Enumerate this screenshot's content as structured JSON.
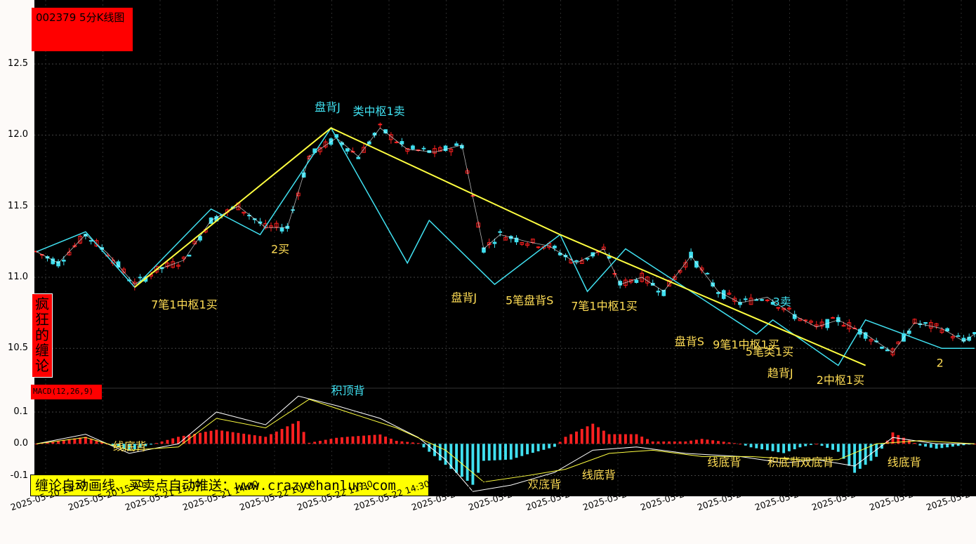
{
  "title": "002379 5分K线图",
  "brand": [
    "疯",
    "狂",
    "的",
    "缠",
    "论"
  ],
  "macd_label": "MACD(12,26,9)",
  "promo": "缠论自动画线、买卖点自动推送：www.crazychanlun.com",
  "colors": {
    "background": "#000000",
    "up": "#ff2020",
    "down": "#40e0f0",
    "yellow": "#ffff40",
    "cyan": "#40e0f0",
    "label": "#ffdd55"
  },
  "chart_data": [
    {
      "type": "candlestick",
      "title": "002379 5分K线图",
      "ylim": [
        10.22,
        12.95
      ],
      "yticks": [
        {
          "v": 12.5,
          "t": "12.5"
        },
        {
          "v": 12.0,
          "t": "12.0"
        },
        {
          "v": 11.5,
          "t": "11.5"
        },
        {
          "v": 11.0,
          "t": "11.0"
        },
        {
          "v": 10.5,
          "t": "10.5"
        }
      ],
      "xticks": [
        "2025-05-20 13:30",
        "2025-05-20 15:00",
        "2025-05-21 11:00",
        "2025-05-21 14:00",
        "2025-05-22 10:00",
        "2025-05-22 11:30",
        "2025-05-22 14:30",
        "2025-05-23 10:30",
        "2025-05-23 13:30",
        "2025-05-23 15:00",
        "2025-05-26 11:00",
        "2025-05-26 14:00",
        "2025-05-27 10:00",
        "2025-05-27 11:30",
        "2025-05-27 14:30",
        "2025-05-28 10:30",
        "2025-05-28"
      ],
      "price_path": [
        [
          0,
          11.18
        ],
        [
          4,
          11.1
        ],
        [
          9,
          11.3
        ],
        [
          13,
          11.17
        ],
        [
          18,
          10.95
        ],
        [
          22,
          11.05
        ],
        [
          27,
          11.12
        ],
        [
          32,
          11.4
        ],
        [
          37,
          11.5
        ],
        [
          42,
          11.35
        ],
        [
          46,
          11.35
        ],
        [
          50,
          11.85
        ],
        [
          55,
          11.98
        ],
        [
          59,
          11.85
        ],
        [
          63,
          12.05
        ],
        [
          68,
          11.9
        ],
        [
          73,
          11.88
        ],
        [
          78,
          11.93
        ],
        [
          82,
          11.2
        ],
        [
          85,
          11.3
        ],
        [
          90,
          11.25
        ],
        [
          94,
          11.22
        ],
        [
          99,
          11.1
        ],
        [
          104,
          11.2
        ],
        [
          107,
          10.95
        ],
        [
          111,
          11.0
        ],
        [
          115,
          10.9
        ],
        [
          120,
          11.15
        ],
        [
          125,
          10.9
        ],
        [
          129,
          10.82
        ],
        [
          134,
          10.86
        ],
        [
          139,
          10.73
        ],
        [
          143,
          10.65
        ],
        [
          147,
          10.7
        ],
        [
          152,
          10.6
        ],
        [
          157,
          10.47
        ],
        [
          161,
          10.68
        ],
        [
          166,
          10.64
        ],
        [
          170,
          10.55
        ],
        [
          172,
          10.6
        ]
      ],
      "strokes": [
        [
          0,
          11.18
        ],
        [
          9,
          11.32
        ],
        [
          18,
          10.93
        ],
        [
          32,
          11.48
        ],
        [
          41,
          11.3
        ],
        [
          54,
          12.05
        ],
        [
          68,
          11.1
        ],
        [
          72,
          11.4
        ],
        [
          84,
          10.95
        ],
        [
          96,
          11.3
        ],
        [
          101,
          10.9
        ],
        [
          108,
          11.2
        ],
        [
          132,
          10.6
        ],
        [
          135,
          10.7
        ],
        [
          147,
          10.38
        ],
        [
          152,
          10.7
        ],
        [
          166,
          10.5
        ],
        [
          172,
          10.5
        ]
      ],
      "segments": [
        [
          18,
          10.93
        ],
        [
          54,
          12.05
        ],
        [
          96,
          11.3
        ],
        [
          152,
          10.38
        ]
      ],
      "annotations": [
        {
          "text": "盘背J",
          "x": 51,
          "y": 12.17,
          "color": "cyan"
        },
        {
          "text": "类中枢1卖",
          "x": 58,
          "y": 12.14,
          "color": "cyan"
        },
        {
          "text": "2买",
          "x": 43,
          "y": 11.17,
          "color": "yellow"
        },
        {
          "text": "7笔1中枢1买",
          "x": 21,
          "y": 10.78,
          "color": "yellow"
        },
        {
          "text": "盘背J",
          "x": 76,
          "y": 10.83,
          "color": "yellow"
        },
        {
          "text": "5笔盘背S",
          "x": 86,
          "y": 10.81,
          "color": "yellow"
        },
        {
          "text": "7笔1中枢1买",
          "x": 98,
          "y": 10.77,
          "color": "yellow"
        },
        {
          "text": "3卖",
          "x": 135,
          "y": 10.8,
          "color": "cyan"
        },
        {
          "text": "盘背S",
          "x": 117,
          "y": 10.52,
          "color": "yellow"
        },
        {
          "text": "9笔1中枢1买",
          "x": 124,
          "y": 10.5,
          "color": "yellow"
        },
        {
          "text": "5笔类1买",
          "x": 130,
          "y": 10.45,
          "color": "yellow"
        },
        {
          "text": "趋背J",
          "x": 134,
          "y": 10.3,
          "color": "yellow"
        },
        {
          "text": "2中枢1买",
          "x": 143,
          "y": 10.25,
          "color": "yellow"
        },
        {
          "text": "2",
          "x": 165,
          "y": 10.37,
          "color": "yellow"
        }
      ]
    },
    {
      "type": "macd",
      "title": "MACD(12,26,9)",
      "ylim": [
        -0.165,
        0.175
      ],
      "yticks": [
        {
          "v": 0.1,
          "t": "0.1"
        },
        {
          "v": 0.0,
          "t": "0.0"
        },
        {
          "v": -0.1,
          "t": "-0.1"
        }
      ],
      "dif_path": [
        [
          0,
          0.0
        ],
        [
          9,
          0.03
        ],
        [
          17,
          -0.03
        ],
        [
          26,
          0.0
        ],
        [
          33,
          0.1
        ],
        [
          42,
          0.06
        ],
        [
          48,
          0.15
        ],
        [
          55,
          0.12
        ],
        [
          63,
          0.08
        ],
        [
          70,
          0.02
        ],
        [
          75,
          -0.05
        ],
        [
          80,
          -0.15
        ],
        [
          87,
          -0.13
        ],
        [
          95,
          -0.09
        ],
        [
          102,
          -0.02
        ],
        [
          110,
          -0.01
        ],
        [
          119,
          -0.03
        ],
        [
          129,
          -0.04
        ],
        [
          137,
          -0.06
        ],
        [
          143,
          -0.05
        ],
        [
          150,
          -0.07
        ],
        [
          157,
          0.02
        ],
        [
          165,
          0.0
        ],
        [
          172,
          0.0
        ]
      ],
      "dea_path": [
        [
          0,
          0.0
        ],
        [
          9,
          0.02
        ],
        [
          17,
          -0.02
        ],
        [
          26,
          -0.01
        ],
        [
          33,
          0.08
        ],
        [
          42,
          0.05
        ],
        [
          50,
          0.14
        ],
        [
          57,
          0.1
        ],
        [
          66,
          0.05
        ],
        [
          75,
          -0.02
        ],
        [
          82,
          -0.12
        ],
        [
          90,
          -0.1
        ],
        [
          97,
          -0.08
        ],
        [
          105,
          -0.03
        ],
        [
          113,
          -0.02
        ],
        [
          122,
          -0.04
        ],
        [
          131,
          -0.04
        ],
        [
          140,
          -0.05
        ],
        [
          147,
          -0.05
        ],
        [
          154,
          0.0
        ],
        [
          162,
          0.01
        ],
        [
          172,
          0.0
        ]
      ],
      "annotations": [
        {
          "text": "积顶背",
          "x": 54,
          "y": 0.155,
          "color": "cyan"
        },
        {
          "text": "线底背",
          "x": 14,
          "y": -0.02,
          "color": "yellow"
        },
        {
          "text": "双底背",
          "x": 90,
          "y": -0.14,
          "color": "yellow"
        },
        {
          "text": "线底背",
          "x": 100,
          "y": -0.11,
          "color": "yellow"
        },
        {
          "text": "线底背",
          "x": 123,
          "y": -0.07,
          "color": "yellow"
        },
        {
          "text": "积底背",
          "x": 134,
          "y": -0.07,
          "color": "yellow"
        },
        {
          "text": "双底背",
          "x": 140,
          "y": -0.07,
          "color": "yellow"
        },
        {
          "text": "线底背",
          "x": 156,
          "y": -0.07,
          "color": "yellow"
        }
      ]
    }
  ]
}
